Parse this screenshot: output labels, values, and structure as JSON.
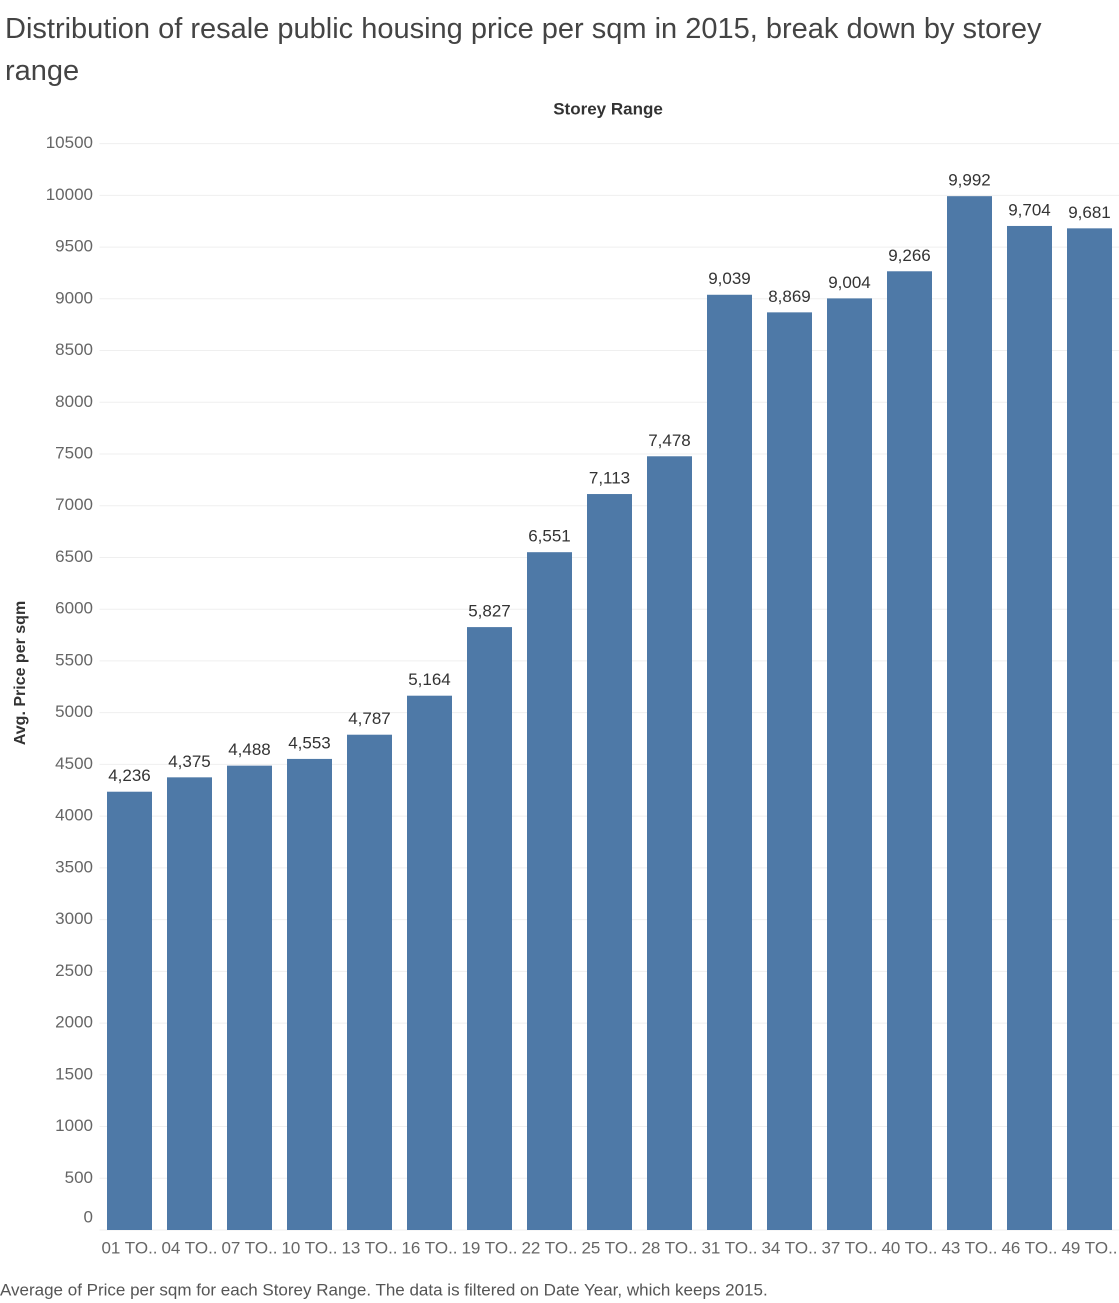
{
  "chart_data": {
    "type": "bar",
    "title": "Distribution of resale public housing price per sqm in 2015, break down by storey range",
    "header": "Storey Range",
    "y_label": "Avg. Price per sqm",
    "caption": "Average of Price per sqm for each Storey Range. The data is filtered on Date Year, which keeps 2015.",
    "categories": [
      "01 TO..",
      "04 TO..",
      "07 TO..",
      "10 TO..",
      "13 TO..",
      "16 TO..",
      "19 TO..",
      "22 TO..",
      "25 TO..",
      "28 TO..",
      "31 TO..",
      "34 TO..",
      "37 TO..",
      "40 TO..",
      "43 TO..",
      "46 TO..",
      "49 TO.."
    ],
    "values": [
      4236,
      4375,
      4488,
      4553,
      4787,
      5164,
      5827,
      6551,
      7113,
      7478,
      9039,
      8869,
      9004,
      9266,
      9992,
      9704,
      9681
    ],
    "value_labels": [
      "4,236",
      "4,375",
      "4,488",
      "4,553",
      "4,787",
      "5,164",
      "5,827",
      "6,551",
      "7,113",
      "7,478",
      "9,039",
      "8,869",
      "9,004",
      "9,266",
      "9,992",
      "9,704",
      "9,681"
    ],
    "color": "#4e79a7",
    "ylim": [
      0,
      10500
    ],
    "yticks": [
      0,
      500,
      1000,
      1500,
      2000,
      2500,
      3000,
      3500,
      4000,
      4500,
      5000,
      5500,
      6000,
      6500,
      7000,
      7500,
      8000,
      8500,
      9000,
      9500,
      10000,
      10500
    ],
    "grid": true
  }
}
